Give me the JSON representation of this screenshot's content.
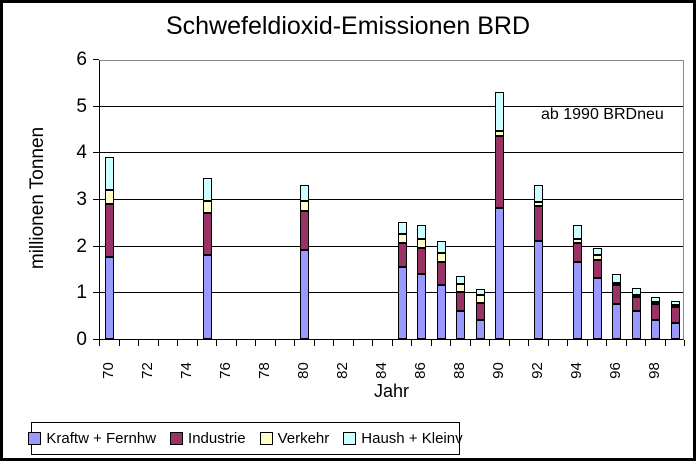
{
  "chart_data": {
    "type": "bar",
    "stacked": true,
    "title": "Schwefeldioxid-Emissionen BRD",
    "xlabel": "Jahr",
    "ylabel": "millionen Tonnen",
    "annotation": "ab 1990 BRDneu",
    "ylim": [
      0,
      6
    ],
    "yticks": [
      0,
      1,
      2,
      3,
      4,
      5,
      6
    ],
    "xtick_labels": [
      "70",
      "72",
      "74",
      "76",
      "78",
      "80",
      "82",
      "84",
      "86",
      "88",
      "90",
      "92",
      "94",
      "96",
      "98"
    ],
    "x_slot_start_year": 1970,
    "x_slot_count": 30,
    "grid": "horizontal",
    "legend_position": "bottom",
    "categories": [
      1970,
      1975,
      1980,
      1985,
      1986,
      1987,
      1988,
      1989,
      1990,
      1992,
      1994,
      1995,
      1996,
      1997,
      1998,
      1999
    ],
    "series": [
      {
        "name": "Kraftw + Fernhw",
        "color": "#9999FF",
        "values": [
          1.75,
          1.8,
          1.9,
          1.55,
          1.4,
          1.15,
          0.6,
          0.4,
          2.8,
          2.1,
          1.65,
          1.3,
          0.75,
          0.6,
          0.4,
          0.35
        ]
      },
      {
        "name": "Industrie",
        "color": "#993366",
        "values": [
          1.15,
          0.9,
          0.85,
          0.5,
          0.55,
          0.5,
          0.4,
          0.38,
          1.55,
          0.75,
          0.4,
          0.4,
          0.4,
          0.3,
          0.35,
          0.33
        ]
      },
      {
        "name": "Verkehr",
        "color": "#FFFFCC",
        "values": [
          0.3,
          0.25,
          0.2,
          0.2,
          0.2,
          0.2,
          0.18,
          0.17,
          0.1,
          0.08,
          0.1,
          0.1,
          0.05,
          0.05,
          0.05,
          0.04
        ]
      },
      {
        "name": "Haush + Kleinv",
        "color": "#CCFFFF",
        "values": [
          0.7,
          0.5,
          0.35,
          0.25,
          0.3,
          0.25,
          0.17,
          0.12,
          0.85,
          0.37,
          0.3,
          0.15,
          0.2,
          0.15,
          0.1,
          0.1
        ]
      }
    ]
  }
}
